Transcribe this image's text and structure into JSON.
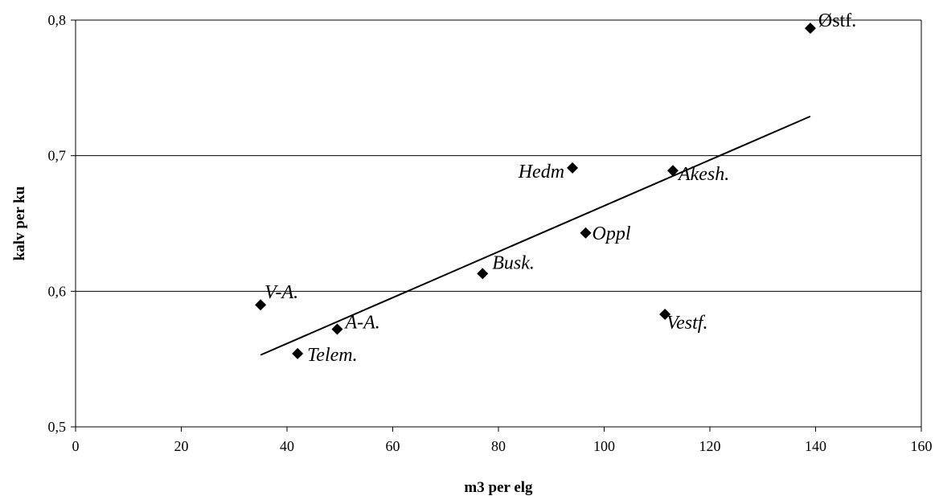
{
  "chart_data": {
    "type": "scatter",
    "title": "",
    "xlabel": "m3 per elg",
    "ylabel": "kalv per ku",
    "xlim": [
      0,
      160
    ],
    "ylim": [
      0.5,
      0.8
    ],
    "x_ticks": [
      "0",
      "20",
      "40",
      "60",
      "80",
      "100",
      "120",
      "140",
      "160"
    ],
    "y_ticks": [
      "0,5",
      "0,6",
      "0,7",
      "0,8"
    ],
    "grid": "horizontal",
    "marker": "diamond",
    "points": [
      {
        "label": "V-A.",
        "x": 35,
        "y": 0.59
      },
      {
        "label": "A-A.",
        "x": 49.5,
        "y": 0.572
      },
      {
        "label": "Telem.",
        "x": 42,
        "y": 0.554
      },
      {
        "label": "Busk.",
        "x": 77,
        "y": 0.613
      },
      {
        "label": "Hedm",
        "x": 94,
        "y": 0.691
      },
      {
        "label": "Oppl",
        "x": 96.5,
        "y": 0.643
      },
      {
        "label": "Vestf.",
        "x": 111.5,
        "y": 0.583
      },
      {
        "label": "Akesh.",
        "x": 113,
        "y": 0.689
      },
      {
        "label": "Østf.",
        "x": 139,
        "y": 0.794
      }
    ],
    "trendline": {
      "type": "linear",
      "x": [
        35,
        139
      ],
      "y": [
        0.553,
        0.729
      ]
    }
  }
}
